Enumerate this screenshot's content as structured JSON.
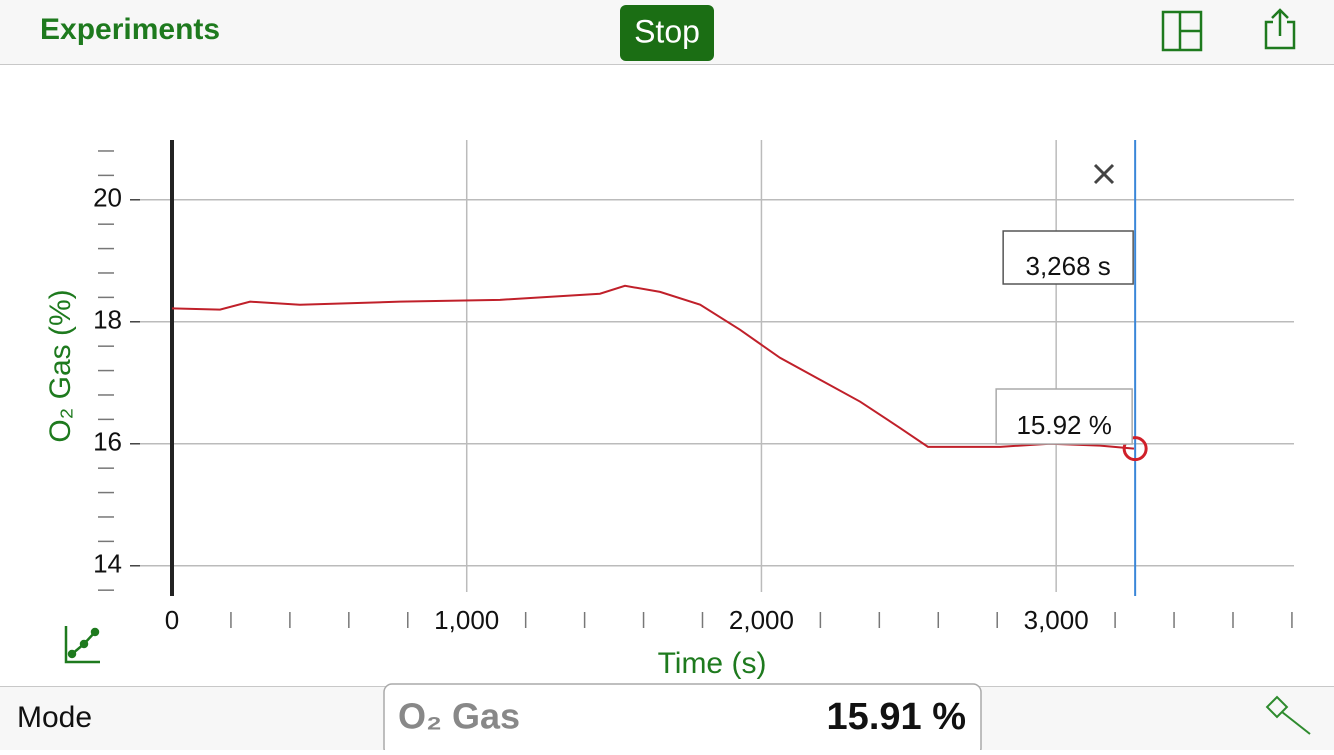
{
  "toolbar": {
    "back": "Experiments",
    "stop": "Stop"
  },
  "chart_data": {
    "type": "line",
    "x_label": "Time (s)",
    "y_label": "O₂ Gas (%)",
    "x": [
      0,
      163,
      265,
      434,
      774,
      1113,
      1452,
      1537,
      1656,
      1792,
      1927,
      2063,
      2199,
      2335,
      2470,
      2565,
      2810,
      2979,
      3149,
      3264
    ],
    "series": [
      {
        "name": "O₂ Gas",
        "color": "#c0202a",
        "values": [
          18.22,
          18.2,
          18.33,
          18.28,
          18.33,
          18.36,
          18.46,
          18.59,
          18.49,
          18.28,
          17.87,
          17.41,
          17.05,
          16.69,
          16.26,
          15.95,
          15.95,
          16.0,
          15.97,
          15.92
        ]
      }
    ],
    "xlim": [
      0,
      3807
    ],
    "ylim": [
      13.57,
      20.98
    ],
    "xticks": [
      0,
      {
        "value": 1000,
        "label": "1,000"
      },
      {
        "value": 2000,
        "label": "2,000"
      },
      {
        "value": 3000,
        "label": "3,000"
      }
    ],
    "xminorticks": [
      200,
      400,
      600,
      800,
      1200,
      1400,
      1600,
      1800,
      2200,
      2400,
      2600,
      2800,
      3200,
      3400,
      3600,
      3800
    ],
    "yticks": [
      14,
      16,
      18,
      20
    ],
    "yminorticks": [
      13.6,
      14.4,
      14.8,
      15.2,
      15.6,
      16.4,
      16.8,
      17.2,
      17.6,
      18.4,
      18.8,
      19.2,
      19.6,
      20.4,
      20.8
    ],
    "grid": true,
    "cursor": {
      "x": 3268,
      "x_label": "3,268 s",
      "value": 15.92,
      "value_label": "15.92 %",
      "color": "#3a86d8"
    }
  },
  "footer": {
    "mode": "Mode",
    "sensor": "O₂ Gas",
    "reading": "15.91 %"
  }
}
